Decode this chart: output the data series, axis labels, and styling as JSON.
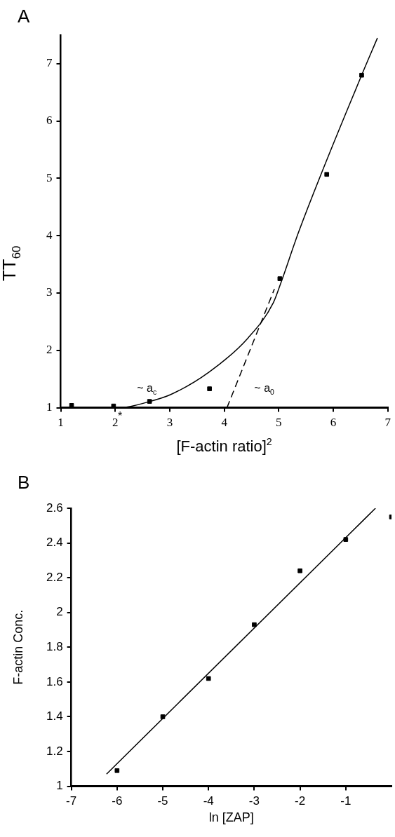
{
  "chart_data": [
    {
      "type": "scatter",
      "title": "A",
      "xlabel": "[F-actin ratio]$^{2}$",
      "ylabel": "TT$_{60}$",
      "xlim": [
        1,
        7
      ],
      "xticks": [
        1,
        2,
        3,
        4,
        5,
        6,
        7
      ],
      "ylim": [
        1,
        7.5
      ],
      "yticks": [
        1,
        2,
        3,
        4,
        5,
        6,
        7
      ],
      "grid": false,
      "legend": false,
      "marker": "square",
      "series": [
        {
          "color": "#000000",
          "x": [
            1.2,
            1.97,
            2.63,
            3.73,
            5.02,
            5.88,
            6.52
          ],
          "values": [
            1.04,
            1.03,
            1.11,
            1.33,
            3.25,
            5.07,
            6.8
          ]
        },
        {
          "type": "line",
          "color": "#000000",
          "line_style": "solid",
          "marker": "none",
          "x": [
            1,
            2.08,
            2.64,
            3.02,
            3.72,
            4.43,
            4.9,
            5.04,
            5.37,
            6.52,
            6.81
          ],
          "values": [
            1,
            1,
            1.11,
            1.23,
            1.62,
            2.21,
            2.83,
            3.18,
            4.08,
            6.8,
            7.45
          ]
        },
        {
          "type": "line",
          "color": "#000000",
          "line_style": "dashed",
          "marker": "none",
          "x": [
            4.05,
            4.92
          ],
          "values": [
            1,
            3.07
          ]
        }
      ],
      "annotations": [
        "~ a$_{c}$",
        "~ a$_{0}$",
        "*"
      ]
    },
    {
      "type": "scatter",
      "title": "B",
      "xlabel": "ln [ZAP]",
      "ylabel": "F-actin Conc.",
      "xlim": [
        -7,
        0
      ],
      "xticks": [
        -7,
        -6,
        -5,
        -4,
        -3,
        -2,
        -1
      ],
      "ylim": [
        1,
        2.6
      ],
      "yticks": [
        1,
        1.2,
        1.4,
        1.6,
        1.8,
        2,
        2.2,
        2.4,
        2.6
      ],
      "grid": false,
      "legend": false,
      "marker": "square",
      "series": [
        {
          "color": "#000000",
          "x": [
            -6,
            -5,
            -4,
            -3,
            -2,
            -1,
            0
          ],
          "values": [
            1.09,
            1.4,
            1.62,
            1.93,
            2.24,
            2.42,
            2.55
          ]
        },
        {
          "type": "line",
          "color": "#000000",
          "line_style": "solid",
          "marker": "none",
          "x": [
            -6.23,
            -0.35
          ],
          "values": [
            1.07,
            2.6
          ]
        }
      ]
    }
  ]
}
